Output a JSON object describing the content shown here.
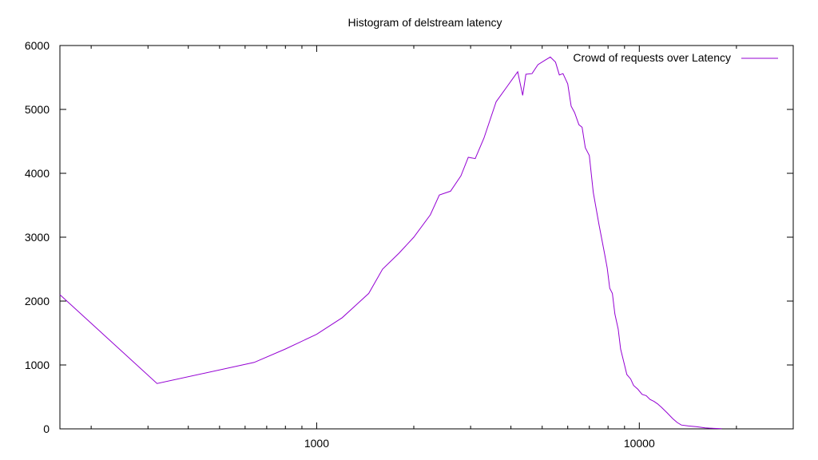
{
  "chart_data": {
    "type": "line",
    "title": "Histogram of delstream latency",
    "xlabel": "",
    "ylabel": "",
    "xscale": "log",
    "xlim": [
      160,
      30000
    ],
    "ylim": [
      0,
      6000
    ],
    "xticks_major": [
      1000,
      10000
    ],
    "xtick_labels": [
      "1000",
      "10000"
    ],
    "yticks": [
      0,
      1000,
      2000,
      3000,
      4000,
      5000,
      6000
    ],
    "ytick_labels": [
      "0",
      "1000",
      "2000",
      "3000",
      "4000",
      "5000",
      "6000"
    ],
    "grid": false,
    "legend_position": "top-right",
    "series": [
      {
        "name": "Crowd of requests over Latency",
        "color": "#9400d3",
        "points": [
          [
            160,
            2100
          ],
          [
            320,
            710
          ],
          [
            640,
            1040
          ],
          [
            800,
            1250
          ],
          [
            1000,
            1480
          ],
          [
            1200,
            1740
          ],
          [
            1450,
            2120
          ],
          [
            1600,
            2500
          ],
          [
            1800,
            2750
          ],
          [
            2000,
            3000
          ],
          [
            2250,
            3350
          ],
          [
            2400,
            3660
          ],
          [
            2600,
            3720
          ],
          [
            2800,
            3960
          ],
          [
            2950,
            4250
          ],
          [
            3100,
            4230
          ],
          [
            3300,
            4550
          ],
          [
            3600,
            5120
          ],
          [
            4050,
            5480
          ],
          [
            4200,
            5590
          ],
          [
            4350,
            5220
          ],
          [
            4450,
            5550
          ],
          [
            4650,
            5560
          ],
          [
            4850,
            5700
          ],
          [
            5100,
            5770
          ],
          [
            5300,
            5820
          ],
          [
            5500,
            5740
          ],
          [
            5650,
            5540
          ],
          [
            5800,
            5560
          ],
          [
            6000,
            5400
          ],
          [
            6150,
            5050
          ],
          [
            6300,
            4950
          ],
          [
            6500,
            4760
          ],
          [
            6650,
            4720
          ],
          [
            6800,
            4400
          ],
          [
            7000,
            4280
          ],
          [
            7200,
            3700
          ],
          [
            7500,
            3200
          ],
          [
            7800,
            2750
          ],
          [
            7950,
            2520
          ],
          [
            8100,
            2200
          ],
          [
            8250,
            2120
          ],
          [
            8400,
            1800
          ],
          [
            8600,
            1560
          ],
          [
            8750,
            1250
          ],
          [
            9000,
            1000
          ],
          [
            9150,
            850
          ],
          [
            9400,
            780
          ],
          [
            9600,
            680
          ],
          [
            9900,
            620
          ],
          [
            10200,
            540
          ],
          [
            10500,
            520
          ],
          [
            10800,
            460
          ],
          [
            11100,
            430
          ],
          [
            11400,
            390
          ],
          [
            11700,
            340
          ],
          [
            12200,
            250
          ],
          [
            12700,
            160
          ],
          [
            13100,
            100
          ],
          [
            13500,
            60
          ],
          [
            14200,
            45
          ],
          [
            15000,
            35
          ],
          [
            16000,
            15
          ],
          [
            17000,
            8
          ],
          [
            18000,
            3
          ]
        ]
      }
    ]
  }
}
